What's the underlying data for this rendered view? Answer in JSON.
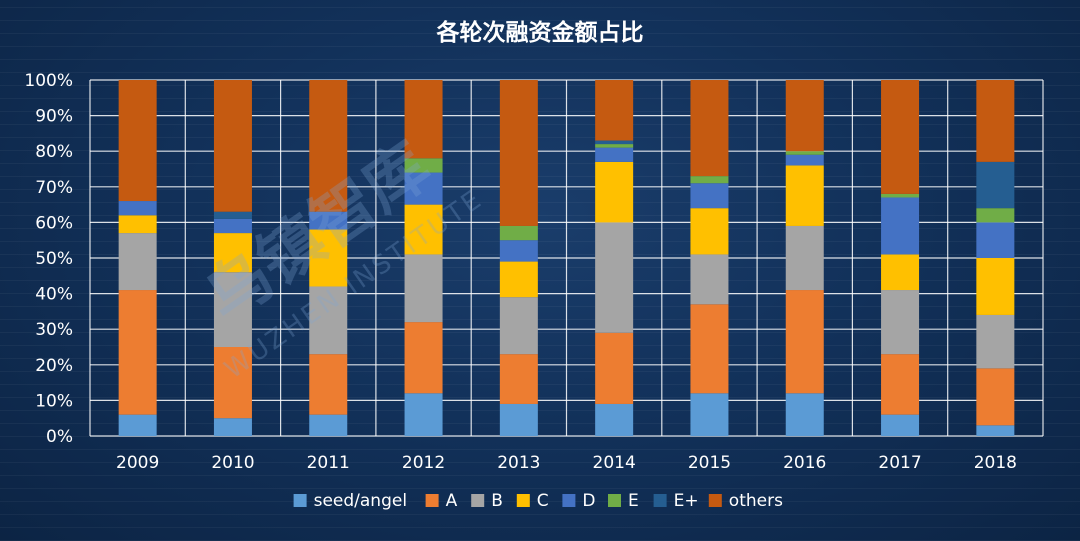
{
  "chart_data": {
    "type": "bar",
    "stacked": true,
    "title": "各轮次融资金额占比",
    "categories": [
      "2009",
      "2010",
      "2011",
      "2012",
      "2013",
      "2014",
      "2015",
      "2016",
      "2017",
      "2018"
    ],
    "ylim": [
      0,
      100
    ],
    "yticks": [
      "0%",
      "10%",
      "20%",
      "30%",
      "40%",
      "50%",
      "60%",
      "70%",
      "80%",
      "90%",
      "100%"
    ],
    "grid": true,
    "legend_position": "bottom",
    "series": [
      {
        "name": "seed/angel",
        "color": "#5b9bd5",
        "values": [
          6,
          5,
          6,
          12,
          9,
          9,
          12,
          12,
          6,
          3
        ]
      },
      {
        "name": "A",
        "color": "#ed7d31",
        "values": [
          35,
          20,
          17,
          20,
          14,
          20,
          25,
          29,
          17,
          16
        ]
      },
      {
        "name": "B",
        "color": "#a5a5a5",
        "values": [
          16,
          21,
          19,
          19,
          16,
          31,
          14,
          18,
          18,
          15
        ]
      },
      {
        "name": "C",
        "color": "#ffc000",
        "values": [
          5,
          11,
          16,
          14,
          10,
          17,
          13,
          17,
          10,
          16
        ]
      },
      {
        "name": "D",
        "color": "#4472c4",
        "values": [
          4,
          4,
          5,
          9,
          6,
          4,
          7,
          3,
          16,
          10
        ]
      },
      {
        "name": "E",
        "color": "#70ad47",
        "values": [
          0,
          0,
          0,
          4,
          4,
          1,
          2,
          1,
          1,
          4
        ]
      },
      {
        "name": "E+",
        "color": "#255e91",
        "values": [
          0,
          2,
          0,
          0,
          0,
          1,
          0,
          0,
          0,
          13
        ]
      },
      {
        "name": "others",
        "color": "#c55a11",
        "values": [
          34,
          37,
          37,
          22,
          41,
          17,
          27,
          20,
          32,
          23
        ]
      }
    ]
  },
  "watermark": {
    "logo_text": "乌镇智库",
    "sub_text": "WUZHEN INSTITUTE"
  }
}
